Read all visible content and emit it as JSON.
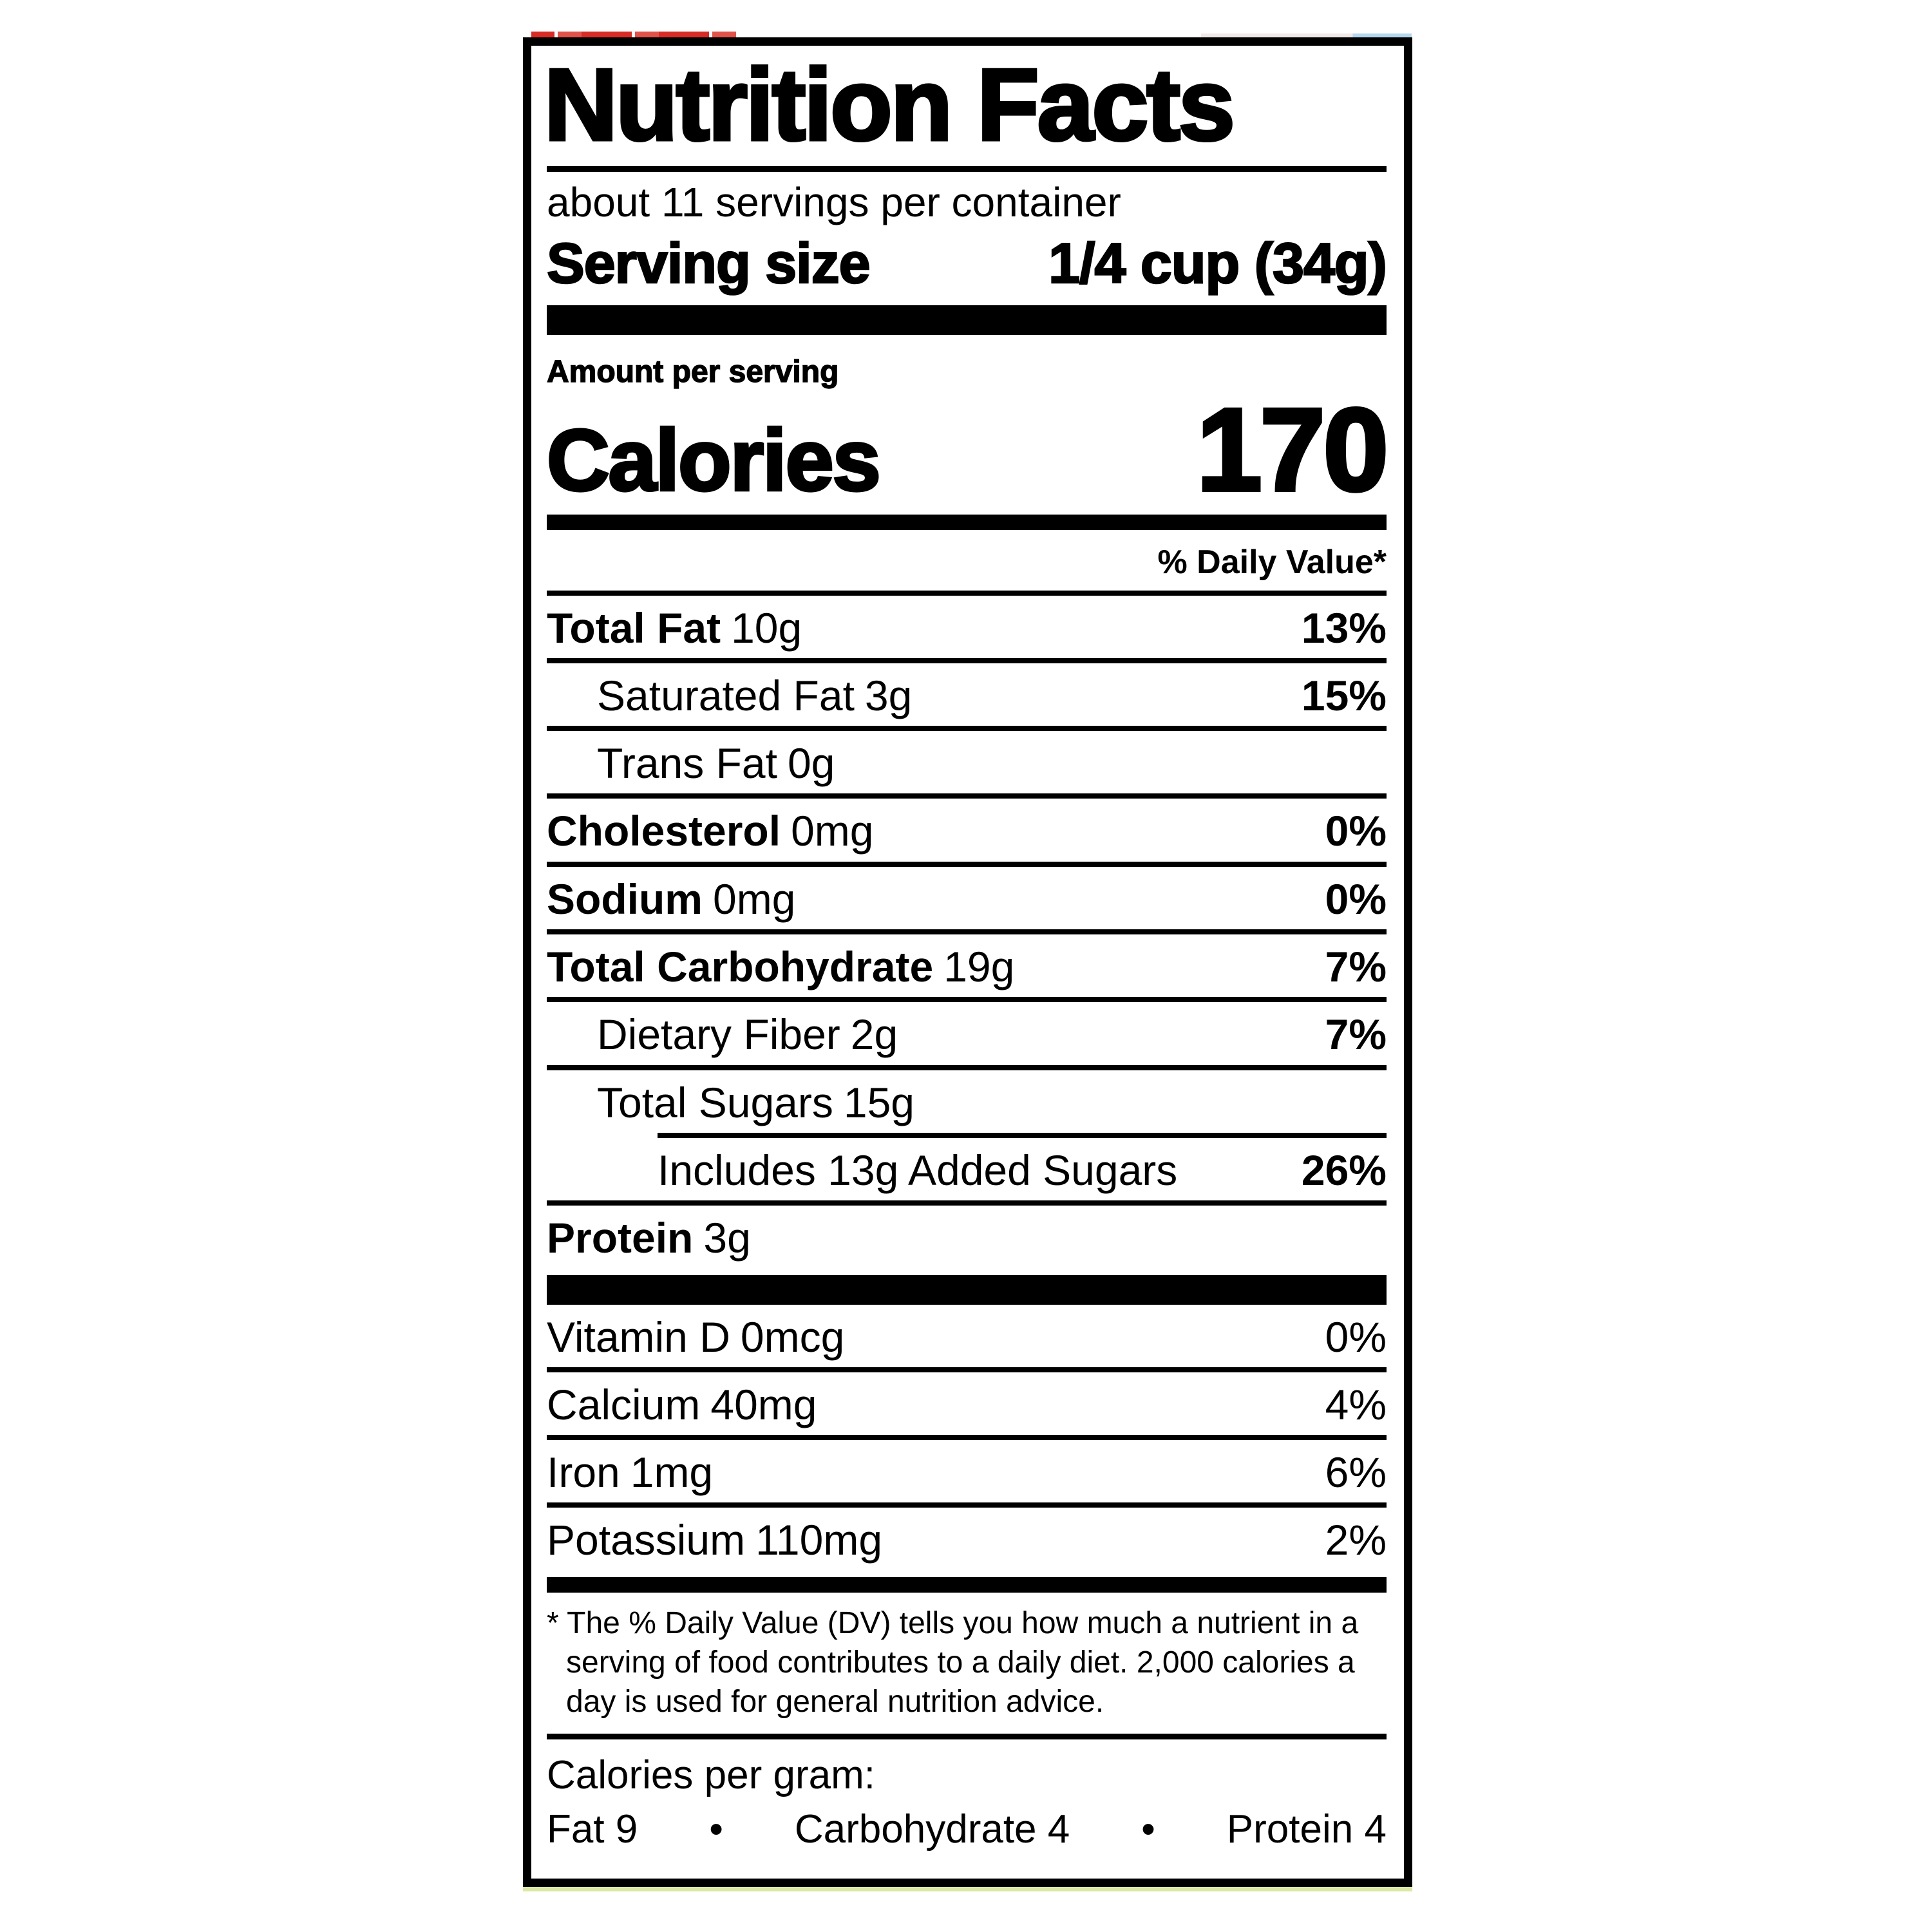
{
  "page": {
    "background": "#ffffff"
  },
  "label": {
    "border_color": "#000000",
    "text_color": "#000000",
    "title": "Nutrition Facts",
    "servings_per_container": "about 11 servings per container",
    "serving_size": {
      "label": "Serving size",
      "value": "1/4 cup (34g)"
    },
    "amount_per_serving": "Amount per serving",
    "calories": {
      "label": "Calories",
      "value": "170"
    },
    "daily_value_header": "% Daily Value*",
    "nutrients": [
      {
        "name": "Total Fat",
        "amount": "10g",
        "dv": "13%"
      },
      {
        "name": "Saturated Fat",
        "amount": "3g",
        "dv": "15%"
      },
      {
        "name": "Trans Fat",
        "amount": "0g",
        "dv": ""
      },
      {
        "name": "Cholesterol",
        "amount": "0mg",
        "dv": "0%"
      },
      {
        "name": "Sodium",
        "amount": "0mg",
        "dv": "0%"
      },
      {
        "name": "Total Carbohydrate",
        "amount": "19g",
        "dv": "7%"
      },
      {
        "name": "Dietary Fiber",
        "amount": "2g",
        "dv": "7%"
      },
      {
        "name": "Total Sugars",
        "amount": "15g",
        "dv": ""
      },
      {
        "name": "Includes 13g Added Sugars",
        "amount": "",
        "dv": "26%"
      },
      {
        "name": "Protein",
        "amount": "3g",
        "dv": ""
      }
    ],
    "vitamins": [
      {
        "name": "Vitamin D",
        "amount": "0mcg",
        "dv": "0%"
      },
      {
        "name": "Calcium",
        "amount": "40mg",
        "dv": "4%"
      },
      {
        "name": "Iron",
        "amount": "1mg",
        "dv": "6%"
      },
      {
        "name": "Potassium",
        "amount": "110mg",
        "dv": "2%"
      }
    ],
    "footnote": "* The % Daily Value (DV) tells you how much a nutrient in a serving of food contributes to a daily diet. 2,000 calories a day is used for general nutrition advice.",
    "calories_per_gram": {
      "label": "Calories per gram:",
      "items": [
        "Fat 9",
        "Carbohydrate 4",
        "Protein 4"
      ],
      "separator": "•"
    }
  },
  "artifacts": {
    "top_left_red": "#d92b26",
    "top_right_blue": "#b5d7ee",
    "top_right_pale": "#f1e9e7",
    "bottom_strip": "#dce9a4"
  }
}
